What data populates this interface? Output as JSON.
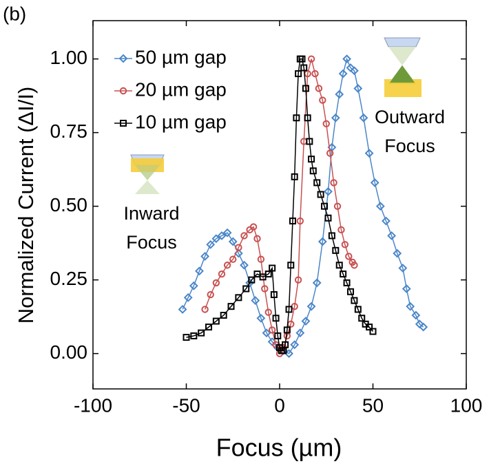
{
  "chart_data": {
    "type": "line",
    "panel_label": "(b)",
    "xlabel": "Focus (µm)",
    "ylabel": "Normalized Current (ΔI/I)",
    "xlim": [
      -100,
      100
    ],
    "ylim": [
      -0.12,
      1.13
    ],
    "xticks": [
      -100,
      -50,
      0,
      50,
      100
    ],
    "yticks": [
      {
        "value": 0,
        "label": "0.00"
      },
      {
        "value": 0.25,
        "label": "0.25"
      },
      {
        "value": 0.5,
        "label": "0.50"
      },
      {
        "value": 0.75,
        "label": "0.75"
      },
      {
        "value": 1,
        "label": "1.00"
      }
    ],
    "annotations": [
      [
        "Inward",
        "Focus"
      ],
      [
        "Outward",
        "Focus"
      ]
    ],
    "series": [
      {
        "name": "50 µm gap",
        "color": "#4a86c8",
        "marker": "diamond",
        "x": [
          -52,
          -49,
          -46,
          -43,
          -40,
          -37,
          -34,
          -31,
          -28,
          -25,
          -22,
          -19,
          -16,
          -13,
          -10,
          -7,
          -4,
          -1,
          2,
          5,
          8,
          11,
          14,
          17,
          20,
          23,
          26,
          28,
          30,
          32,
          34,
          36,
          38,
          40,
          42,
          45,
          48,
          51,
          54,
          57,
          60,
          63,
          66,
          68,
          70,
          73,
          75,
          77
        ],
        "values": [
          0.15,
          0.19,
          0.23,
          0.28,
          0.33,
          0.37,
          0.39,
          0.4,
          0.41,
          0.38,
          0.34,
          0.3,
          0.24,
          0.18,
          0.12,
          0.07,
          0.04,
          0.02,
          0.01,
          0.0,
          0.03,
          0.07,
          0.11,
          0.16,
          0.24,
          0.38,
          0.55,
          0.7,
          0.8,
          0.88,
          0.95,
          1.0,
          0.97,
          0.96,
          0.9,
          0.8,
          0.68,
          0.58,
          0.5,
          0.45,
          0.4,
          0.34,
          0.29,
          0.22,
          0.16,
          0.13,
          0.1,
          0.09
        ]
      },
      {
        "name": "20 µm gap",
        "color": "#c85050",
        "marker": "circle",
        "x": [
          -40,
          -37,
          -34,
          -31,
          -28,
          -25,
          -22,
          -19,
          -16,
          -14,
          -12,
          -10,
          -8,
          -6,
          -4,
          -2,
          0,
          2,
          4,
          6,
          8,
          10,
          11,
          13,
          15,
          17,
          19,
          21,
          23,
          25,
          27,
          29,
          31,
          33,
          35,
          37,
          39,
          40
        ],
        "values": [
          0.15,
          0.2,
          0.24,
          0.27,
          0.3,
          0.32,
          0.36,
          0.4,
          0.42,
          0.43,
          0.39,
          0.32,
          0.22,
          0.14,
          0.08,
          0.03,
          0.0,
          0.02,
          0.06,
          0.1,
          0.16,
          0.25,
          0.45,
          0.72,
          0.95,
          1.0,
          0.95,
          0.9,
          0.86,
          0.78,
          0.68,
          0.58,
          0.5,
          0.42,
          0.37,
          0.33,
          0.31,
          0.3
        ]
      },
      {
        "name": "10 µm gap",
        "color": "#000000",
        "marker": "square",
        "x": [
          -50,
          -46,
          -42,
          -38,
          -34,
          -30,
          -26,
          -22,
          -18,
          -15,
          -12,
          -9,
          -6,
          -4,
          -3,
          -2,
          -1,
          0,
          1,
          2,
          3,
          4,
          5,
          6,
          7,
          8,
          9,
          10,
          11,
          12,
          13,
          14,
          15,
          16,
          17,
          18,
          20,
          22,
          24,
          26,
          28,
          30,
          32,
          34,
          36,
          38,
          40,
          42,
          44,
          46,
          48,
          50
        ],
        "values": [
          0.055,
          0.06,
          0.07,
          0.09,
          0.11,
          0.13,
          0.16,
          0.19,
          0.22,
          0.25,
          0.27,
          0.26,
          0.27,
          0.29,
          0.2,
          0.12,
          0.06,
          0.02,
          0.01,
          0.01,
          0.03,
          0.08,
          0.15,
          0.3,
          0.45,
          0.6,
          0.8,
          0.95,
          1.0,
          1.0,
          0.97,
          0.9,
          0.8,
          0.72,
          0.66,
          0.62,
          0.58,
          0.54,
          0.5,
          0.46,
          0.4,
          0.35,
          0.3,
          0.27,
          0.24,
          0.21,
          0.18,
          0.15,
          0.12,
          0.1,
          0.09,
          0.075
        ]
      }
    ]
  }
}
